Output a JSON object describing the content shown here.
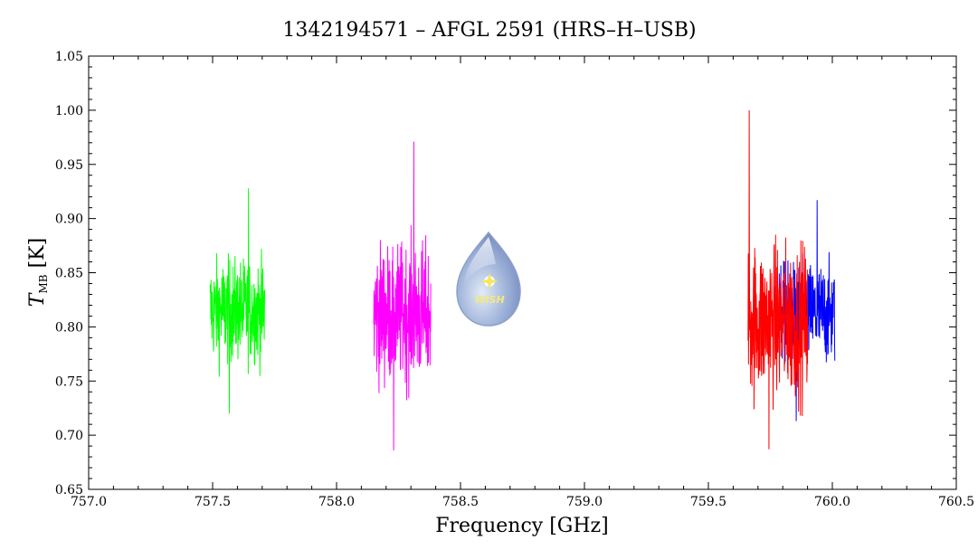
{
  "chart_data": {
    "type": "line",
    "title": "1342194571 – AFGL 2591 (HRS–H–USB)",
    "xlabel": "Frequency [GHz]",
    "ylabel": "T",
    "ylabel_sub": "MB",
    "ylabel_unit": " [K]",
    "xlim": [
      757.0,
      760.5
    ],
    "ylim": [
      0.65,
      1.05
    ],
    "xticks": [
      757.0,
      757.5,
      758.0,
      758.5,
      759.0,
      759.5,
      760.0,
      760.5
    ],
    "xtick_labels": [
      "757.0",
      "757.5",
      "758.0",
      "758.5",
      "759.0",
      "759.5",
      "760.0",
      "760.5"
    ],
    "yticks": [
      0.65,
      0.7,
      0.75,
      0.8,
      0.85,
      0.9,
      0.95,
      1.0,
      1.05
    ],
    "ytick_labels": [
      "0.65",
      "0.70",
      "0.75",
      "0.80",
      "0.85",
      "0.90",
      "0.95",
      "1.00",
      "1.05"
    ],
    "grid": false,
    "series": [
      {
        "color": "#00ff00",
        "x_range": [
          757.49,
          757.71
        ],
        "center": 0.815,
        "min": 0.72,
        "max": 0.928,
        "approx_points": 240
      },
      {
        "color": "#ff00ff",
        "x_range": [
          758.15,
          758.38
        ],
        "center": 0.812,
        "min": 0.686,
        "max": 0.971,
        "approx_points": 250
      },
      {
        "color": "#0000ff",
        "x_range": [
          759.77,
          760.01
        ],
        "center": 0.812,
        "min": 0.713,
        "max": 0.917,
        "approx_points": 260
      },
      {
        "color": "#ff0000",
        "x_range": [
          759.66,
          759.9
        ],
        "center": 0.805,
        "min": 0.687,
        "max": 1.0,
        "approx_points": 260
      }
    ],
    "logo_text": "WISH"
  }
}
